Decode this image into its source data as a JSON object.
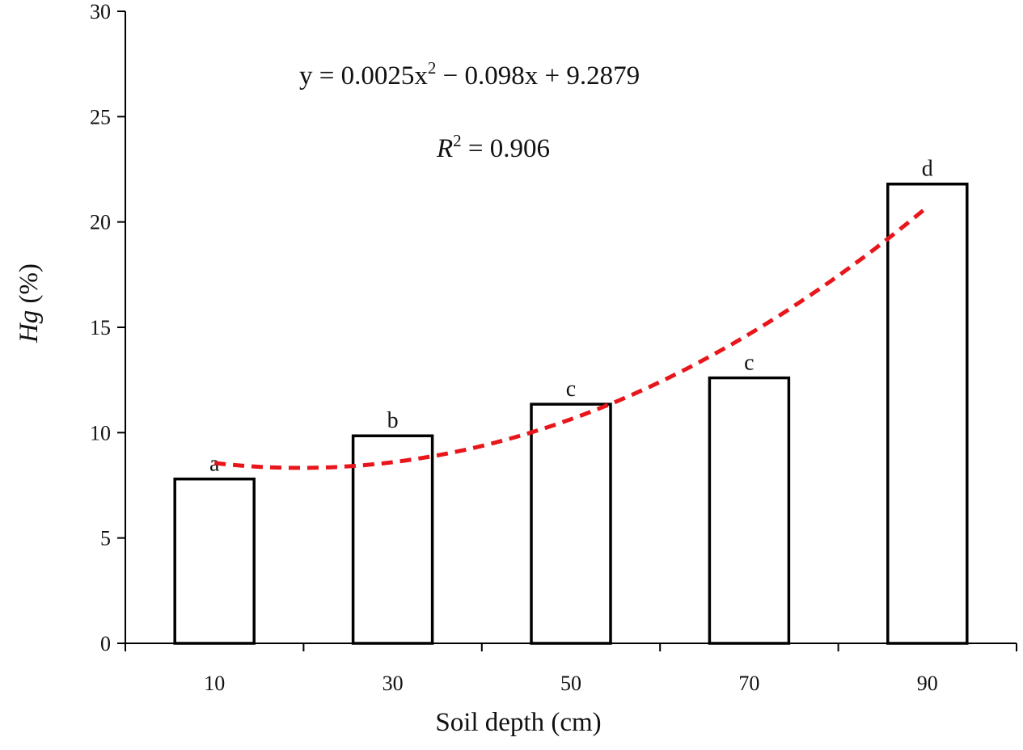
{
  "chart_data": {
    "type": "bar",
    "title": "",
    "xlabel": "Soil depth (cm)",
    "ylabel_italic": "Hg",
    "ylabel_rest": " (%)",
    "categories": [
      "10",
      "30",
      "50",
      "70",
      "90"
    ],
    "values": [
      7.8,
      9.85,
      11.35,
      12.6,
      21.8
    ],
    "significance_letters": [
      "a",
      "b",
      "c",
      "c",
      "d"
    ],
    "ylim": [
      0,
      30
    ],
    "yticks": [
      0,
      5,
      10,
      15,
      20,
      25,
      30
    ],
    "grid": false,
    "trendline": {
      "type": "polynomial",
      "coefficients": {
        "a": 0.0025,
        "b": -0.098,
        "c": 9.2879
      },
      "x_range": [
        10,
        90
      ],
      "color": "#e8161b",
      "equation_text": {
        "prefix": "y = 0.0025x",
        "sup": "2",
        "suffix": " − 0.098x + 9.2879"
      },
      "r2_text": {
        "symbol": "R",
        "sup": "2",
        "value": " = 0.906"
      }
    }
  }
}
